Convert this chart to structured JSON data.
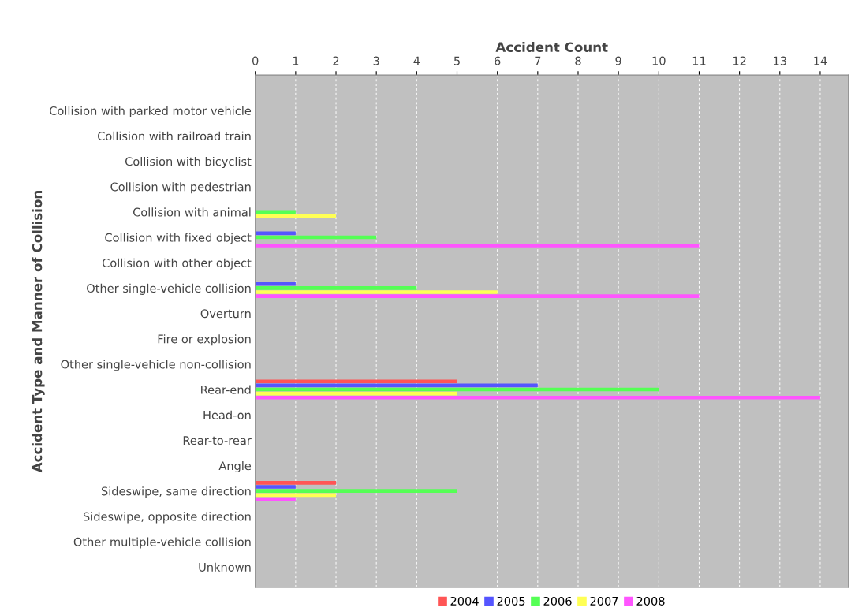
{
  "chart_data": {
    "type": "bar",
    "orientation": "horizontal",
    "xlabel": "Accident Count",
    "ylabel": "Accident Type and Manner of Collision",
    "categories": [
      "Collision with parked motor vehicle",
      "Collision with railroad train",
      "Collision with bicyclist",
      "Collision with pedestrian",
      "Collision with animal",
      "Collision with fixed object",
      "Collision with other object",
      "Other single-vehicle collision",
      "Overturn",
      "Fire or explosion",
      "Other single-vehicle non-collision",
      "Rear-end",
      "Head-on",
      "Rear-to-rear",
      "Angle",
      "Sideswipe, same direction",
      "Sideswipe, opposite direction",
      "Other multiple-vehicle collision",
      "Unknown"
    ],
    "series": [
      {
        "name": "2004",
        "color": "#ff5555",
        "values": [
          0,
          0,
          0,
          0,
          0,
          0,
          0,
          0,
          0,
          0,
          0,
          5,
          0,
          0,
          0,
          2,
          0,
          0,
          0
        ]
      },
      {
        "name": "2005",
        "color": "#5555ff",
        "values": [
          0,
          0,
          0,
          0,
          0,
          1,
          0,
          1,
          0,
          0,
          0,
          7,
          0,
          0,
          0,
          1,
          0,
          0,
          0
        ]
      },
      {
        "name": "2006",
        "color": "#55ff55",
        "values": [
          0,
          0,
          0,
          0,
          1,
          3,
          0,
          4,
          0,
          0,
          0,
          10,
          0,
          0,
          0,
          5,
          0,
          0,
          0
        ]
      },
      {
        "name": "2007",
        "color": "#ffff55",
        "values": [
          0,
          0,
          0,
          0,
          2,
          0,
          0,
          6,
          0,
          0,
          0,
          5,
          0,
          0,
          0,
          2,
          0,
          0,
          0
        ]
      },
      {
        "name": "2008",
        "color": "#ff55ff",
        "values": [
          0,
          0,
          0,
          0,
          0,
          11,
          0,
          11,
          0,
          0,
          0,
          14,
          0,
          0,
          0,
          1,
          0,
          0,
          0
        ]
      }
    ],
    "xlim": [
      0,
      14.7
    ],
    "xticks": [
      0,
      1,
      2,
      3,
      4,
      5,
      6,
      7,
      8,
      9,
      10,
      11,
      12,
      13,
      14
    ],
    "grid": "x",
    "legend": "bottom"
  }
}
